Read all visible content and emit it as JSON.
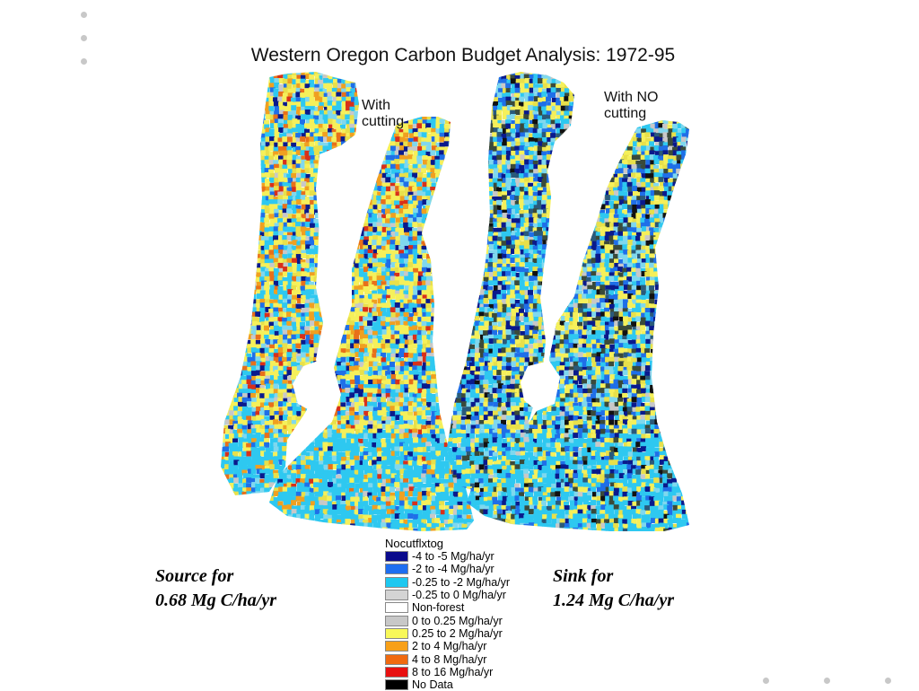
{
  "slide": {
    "title": "Western Oregon Carbon Budget Analysis: 1972-95"
  },
  "maps": [
    {
      "label": "With\ncutting",
      "caption": "Source for\n0.68 Mg C/ha/yr",
      "palette": [
        "#0a1a8c",
        "#1f6fe8",
        "#2ec8f0",
        "#7fd8ee",
        "#c8c8c8",
        "#f5f05a",
        "#e8e04a",
        "#f0a020",
        "#e8701a",
        "#d8301a"
      ],
      "weights": [
        6,
        8,
        22,
        10,
        5,
        24,
        10,
        8,
        4,
        3
      ]
    },
    {
      "label": "With NO\ncutting",
      "caption": "Sink for\n1.24 Mg C/ha/yr",
      "palette": [
        "#0a1a8c",
        "#1f6fe8",
        "#2ec8f0",
        "#7fd8ee",
        "#3a4a3a",
        "#f5f05a",
        "#e8e04a",
        "#c8c8c8",
        "#111111",
        "#2a5a7a"
      ],
      "weights": [
        10,
        12,
        20,
        10,
        10,
        18,
        8,
        4,
        4,
        4
      ]
    }
  ],
  "legend": {
    "title": "Nocutflxtog",
    "items": [
      {
        "label": "-4 to -5 Mg/ha/yr",
        "color": "#0a0a8c"
      },
      {
        "label": "-2 to -4 Mg/ha/yr",
        "color": "#1e6ef0"
      },
      {
        "label": "-0.25 to -2 Mg/ha/yr",
        "color": "#1ec8f0"
      },
      {
        "label": "-0.25 to 0 Mg/ha/yr",
        "color": "#d4d4d4"
      },
      {
        "label": "Non-forest",
        "color": "#ffffff"
      },
      {
        "label": "0 to 0.25 Mg/ha/yr",
        "color": "#c8c8c8"
      },
      {
        "label": "0.25 to 2 Mg/ha/yr",
        "color": "#f8f858"
      },
      {
        "label": "2 to 4 Mg/ha/yr",
        "color": "#f8a018"
      },
      {
        "label": "4 to 8 Mg/ha/yr",
        "color": "#f06a10"
      },
      {
        "label": "8 to 16 Mg/ha/yr",
        "color": "#e81010"
      },
      {
        "label": "No Data",
        "color": "#000000"
      }
    ]
  }
}
